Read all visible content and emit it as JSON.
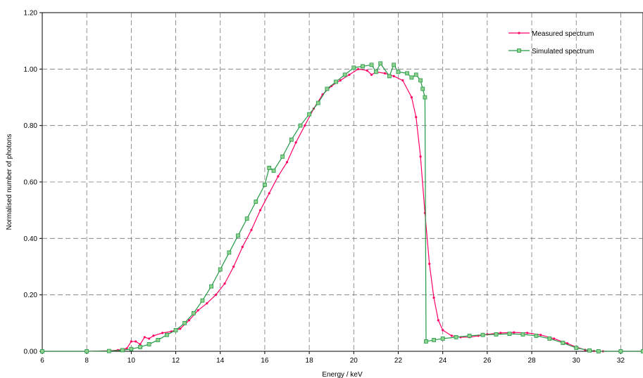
{
  "chart_data": {
    "type": "line",
    "xlabel": "Energy / keV",
    "ylabel": "Normalised number of photons",
    "xlim": [
      6,
      33
    ],
    "ylim": [
      0,
      1.2
    ],
    "xticks": [
      "6",
      "8",
      "10",
      "12",
      "14",
      "16",
      "18",
      "20",
      "22",
      "24",
      "26",
      "28",
      "30",
      "32"
    ],
    "yticks": [
      "0.00",
      "0.20",
      "0.40",
      "0.60",
      "0.80",
      "1.00",
      "1.20"
    ],
    "grid": true,
    "legend_position": "top-right",
    "colors": {
      "measured": "#ff0066",
      "simulated": "#229944"
    },
    "series": [
      {
        "name": "Measured spectrum",
        "x": [
          6.0,
          8.0,
          9.0,
          9.4,
          9.8,
          10.0,
          10.2,
          10.4,
          10.6,
          10.8,
          11.0,
          11.4,
          11.8,
          12.2,
          12.6,
          13.0,
          13.4,
          13.8,
          14.2,
          14.6,
          15.0,
          15.4,
          15.8,
          16.2,
          16.6,
          17.0,
          17.4,
          17.8,
          18.2,
          18.6,
          19.0,
          19.4,
          19.8,
          20.2,
          20.6,
          20.8,
          21.0,
          21.4,
          21.8,
          22.2,
          22.6,
          22.8,
          23.0,
          23.2,
          23.4,
          23.6,
          23.8,
          24.0,
          24.4,
          24.8,
          25.2,
          25.6,
          26.0,
          26.6,
          27.2,
          27.8,
          28.4,
          29.0,
          29.6,
          30.0,
          30.4,
          30.8,
          31.2,
          32.0,
          33.0
        ],
        "values": [
          0.0,
          0.0,
          0.002,
          0.004,
          0.01,
          0.035,
          0.035,
          0.025,
          0.05,
          0.045,
          0.055,
          0.065,
          0.07,
          0.08,
          0.11,
          0.145,
          0.17,
          0.2,
          0.24,
          0.3,
          0.37,
          0.43,
          0.5,
          0.56,
          0.62,
          0.67,
          0.74,
          0.8,
          0.86,
          0.91,
          0.94,
          0.96,
          0.98,
          1.0,
          0.995,
          0.98,
          0.99,
          0.985,
          0.975,
          0.96,
          0.9,
          0.83,
          0.69,
          0.49,
          0.31,
          0.19,
          0.11,
          0.075,
          0.055,
          0.05,
          0.05,
          0.055,
          0.06,
          0.065,
          0.067,
          0.065,
          0.058,
          0.045,
          0.028,
          0.015,
          0.005,
          0.001,
          0.0,
          0.0,
          0.0
        ]
      },
      {
        "name": "Simulated spectrum",
        "x": [
          6.0,
          8.0,
          9.0,
          9.6,
          10.0,
          10.4,
          10.8,
          11.2,
          11.6,
          12.0,
          12.4,
          12.8,
          13.2,
          13.6,
          14.0,
          14.4,
          14.8,
          15.2,
          15.6,
          16.0,
          16.2,
          16.4,
          16.8,
          17.2,
          17.6,
          18.0,
          18.4,
          18.8,
          19.2,
          19.6,
          20.0,
          20.4,
          20.8,
          21.0,
          21.2,
          21.6,
          21.8,
          22.0,
          22.4,
          22.6,
          22.8,
          23.0,
          23.1,
          23.2,
          23.25,
          23.6,
          24.0,
          24.6,
          25.2,
          25.8,
          26.4,
          27.0,
          27.6,
          28.2,
          28.8,
          29.4,
          30.0,
          30.6,
          31.0,
          32.0,
          33.0
        ],
        "values": [
          0.0,
          0.0,
          0.001,
          0.004,
          0.008,
          0.015,
          0.025,
          0.04,
          0.058,
          0.075,
          0.1,
          0.135,
          0.18,
          0.23,
          0.29,
          0.35,
          0.41,
          0.47,
          0.53,
          0.59,
          0.65,
          0.64,
          0.69,
          0.75,
          0.8,
          0.84,
          0.88,
          0.93,
          0.955,
          0.98,
          1.005,
          1.01,
          1.015,
          0.99,
          1.02,
          0.975,
          1.015,
          0.99,
          0.985,
          0.97,
          0.98,
          0.96,
          0.93,
          0.9,
          0.035,
          0.04,
          0.045,
          0.05,
          0.055,
          0.058,
          0.06,
          0.062,
          0.06,
          0.055,
          0.045,
          0.03,
          0.012,
          0.003,
          0.0,
          0.0,
          0.0
        ]
      }
    ]
  }
}
